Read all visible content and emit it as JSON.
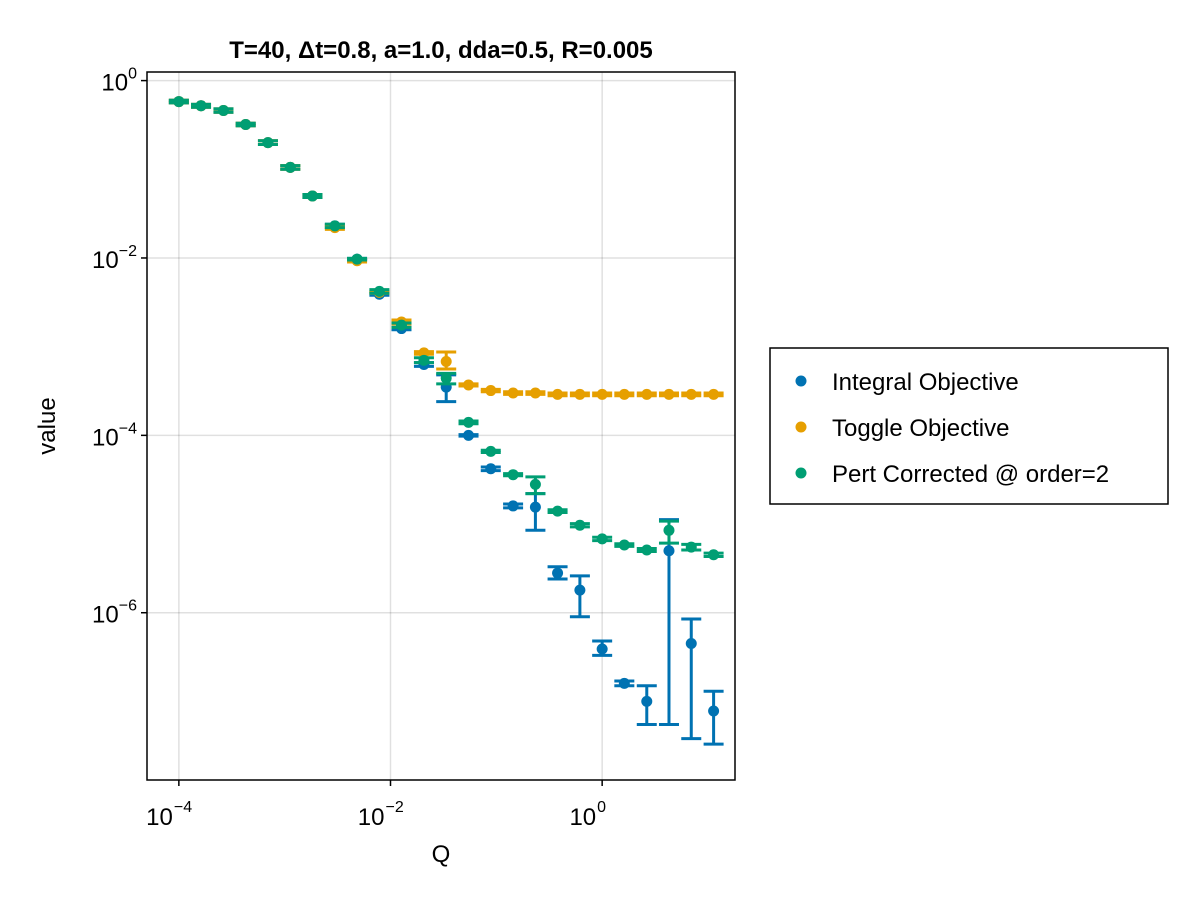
{
  "chart_data": {
    "type": "scatter",
    "title": "T=40, Δt=0.8, a=1.0, dda=0.5, R=0.005",
    "xlabel": "Q",
    "ylabel": "value",
    "xscale": "log10",
    "yscale": "log10",
    "xlim": [
      5e-05,
      18
    ],
    "ylim": [
      1.3e-08,
      1.25
    ],
    "x_ticks": [
      {
        "value": 0.0001,
        "base": "10",
        "exp": "−4"
      },
      {
        "value": 0.01,
        "base": "10",
        "exp": "−2"
      },
      {
        "value": 1,
        "base": "10",
        "exp": "0"
      }
    ],
    "y_ticks": [
      {
        "value": 1,
        "base": "10",
        "exp": "0"
      },
      {
        "value": 0.01,
        "base": "10",
        "exp": "−2"
      },
      {
        "value": 0.0001,
        "base": "10",
        "exp": "−4"
      },
      {
        "value": 1e-06,
        "base": "10",
        "exp": "−6"
      }
    ],
    "grid": true,
    "legend_position": "right",
    "series": [
      {
        "name": "Integral Objective",
        "color": "#0072b2",
        "points": [
          {
            "x": 0.0001,
            "y": 0.58,
            "lo": 0.56,
            "hi": 0.6
          },
          {
            "x": 0.000162,
            "y": 0.52,
            "lo": 0.5,
            "hi": 0.54
          },
          {
            "x": 0.000264,
            "y": 0.46,
            "lo": 0.44,
            "hi": 0.48
          },
          {
            "x": 0.000428,
            "y": 0.32,
            "lo": 0.31,
            "hi": 0.33
          },
          {
            "x": 0.000695,
            "y": 0.2,
            "lo": 0.19,
            "hi": 0.21
          },
          {
            "x": 0.00113,
            "y": 0.105,
            "lo": 0.1,
            "hi": 0.11
          },
          {
            "x": 0.00183,
            "y": 0.05,
            "lo": 0.048,
            "hi": 0.052
          },
          {
            "x": 0.00298,
            "y": 0.023,
            "lo": 0.022,
            "hi": 0.024
          },
          {
            "x": 0.00483,
            "y": 0.0097,
            "lo": 0.0095,
            "hi": 0.0099
          },
          {
            "x": 0.00785,
            "y": 0.0039,
            "lo": 0.0038,
            "hi": 0.0041
          },
          {
            "x": 0.0127,
            "y": 0.0016,
            "lo": 0.00155,
            "hi": 0.00165
          },
          {
            "x": 0.0207,
            "y": 0.00063,
            "lo": 0.0006,
            "hi": 0.00066
          },
          {
            "x": 0.0336,
            "y": 0.00035,
            "lo": 0.00024,
            "hi": 0.00048
          },
          {
            "x": 0.0546,
            "y": 0.0001,
            "lo": 9.8e-05,
            "hi": 0.000102
          },
          {
            "x": 0.0886,
            "y": 4.2e-05,
            "lo": 4e-05,
            "hi": 4.4e-05
          },
          {
            "x": 0.144,
            "y": 1.6e-05,
            "lo": 1.52e-05,
            "hi": 1.68e-05
          },
          {
            "x": 0.234,
            "y": 1.55e-05,
            "lo": 8.5e-06,
            "hi": 2.2e-05
          },
          {
            "x": 0.379,
            "y": 2.8e-06,
            "lo": 2.4e-06,
            "hi": 3.3e-06
          },
          {
            "x": 0.616,
            "y": 1.8e-06,
            "lo": 9e-07,
            "hi": 2.6e-06
          },
          {
            "x": 1.0,
            "y": 3.9e-07,
            "lo": 3.3e-07,
            "hi": 4.8e-07
          },
          {
            "x": 1.62,
            "y": 1.6e-07,
            "lo": 1.5e-07,
            "hi": 1.7e-07
          },
          {
            "x": 2.64,
            "y": 1e-07,
            "lo": 5.5e-08,
            "hi": 1.5e-07
          },
          {
            "x": 4.28,
            "y": 5e-06,
            "lo": 5.5e-08,
            "hi": 1.12e-05
          },
          {
            "x": 6.95,
            "y": 4.5e-07,
            "lo": 3.8e-08,
            "hi": 8.5e-07
          },
          {
            "x": 11.3,
            "y": 7.8e-08,
            "lo": 3.3e-08,
            "hi": 1.3e-07
          }
        ]
      },
      {
        "name": "Toggle Objective",
        "color": "#e69f00",
        "points": [
          {
            "x": 0.0001,
            "y": 0.58,
            "lo": 0.56,
            "hi": 0.6
          },
          {
            "x": 0.000162,
            "y": 0.52,
            "lo": 0.5,
            "hi": 0.54
          },
          {
            "x": 0.000264,
            "y": 0.46,
            "lo": 0.44,
            "hi": 0.48
          },
          {
            "x": 0.000428,
            "y": 0.32,
            "lo": 0.31,
            "hi": 0.33
          },
          {
            "x": 0.000695,
            "y": 0.2,
            "lo": 0.19,
            "hi": 0.21
          },
          {
            "x": 0.00113,
            "y": 0.105,
            "lo": 0.1,
            "hi": 0.11
          },
          {
            "x": 0.00183,
            "y": 0.05,
            "lo": 0.048,
            "hi": 0.052
          },
          {
            "x": 0.00298,
            "y": 0.022,
            "lo": 0.021,
            "hi": 0.023
          },
          {
            "x": 0.00483,
            "y": 0.0093,
            "lo": 0.009,
            "hi": 0.0096
          },
          {
            "x": 0.00785,
            "y": 0.0041,
            "lo": 0.004,
            "hi": 0.0042
          },
          {
            "x": 0.0127,
            "y": 0.0019,
            "lo": 0.0018,
            "hi": 0.002
          },
          {
            "x": 0.0207,
            "y": 0.00085,
            "lo": 0.00082,
            "hi": 0.00088
          },
          {
            "x": 0.0336,
            "y": 0.00068,
            "lo": 0.00056,
            "hi": 0.00087
          },
          {
            "x": 0.0546,
            "y": 0.00037,
            "lo": 0.00036,
            "hi": 0.00038
          },
          {
            "x": 0.0886,
            "y": 0.00032,
            "lo": 0.00031,
            "hi": 0.00033
          },
          {
            "x": 0.144,
            "y": 0.0003,
            "lo": 0.00029,
            "hi": 0.00031
          },
          {
            "x": 0.234,
            "y": 0.0003,
            "lo": 0.00029,
            "hi": 0.00031
          },
          {
            "x": 0.379,
            "y": 0.00029,
            "lo": 0.00028,
            "hi": 0.0003
          },
          {
            "x": 0.616,
            "y": 0.00029,
            "lo": 0.00028,
            "hi": 0.0003
          },
          {
            "x": 1.0,
            "y": 0.00029,
            "lo": 0.00028,
            "hi": 0.0003
          },
          {
            "x": 1.62,
            "y": 0.00029,
            "lo": 0.00028,
            "hi": 0.0003
          },
          {
            "x": 2.64,
            "y": 0.00029,
            "lo": 0.00028,
            "hi": 0.0003
          },
          {
            "x": 4.28,
            "y": 0.00029,
            "lo": 0.00028,
            "hi": 0.0003
          },
          {
            "x": 6.95,
            "y": 0.00029,
            "lo": 0.00028,
            "hi": 0.0003
          },
          {
            "x": 11.3,
            "y": 0.00029,
            "lo": 0.00028,
            "hi": 0.0003
          }
        ]
      },
      {
        "name": "Pert Corrected @ order=2",
        "color": "#009e73",
        "points": [
          {
            "x": 0.0001,
            "y": 0.58,
            "lo": 0.56,
            "hi": 0.6
          },
          {
            "x": 0.000162,
            "y": 0.52,
            "lo": 0.5,
            "hi": 0.54
          },
          {
            "x": 0.000264,
            "y": 0.46,
            "lo": 0.44,
            "hi": 0.48
          },
          {
            "x": 0.000428,
            "y": 0.32,
            "lo": 0.31,
            "hi": 0.33
          },
          {
            "x": 0.000695,
            "y": 0.2,
            "lo": 0.19,
            "hi": 0.21
          },
          {
            "x": 0.00113,
            "y": 0.105,
            "lo": 0.1,
            "hi": 0.11
          },
          {
            "x": 0.00183,
            "y": 0.05,
            "lo": 0.048,
            "hi": 0.052
          },
          {
            "x": 0.00298,
            "y": 0.023,
            "lo": 0.022,
            "hi": 0.024
          },
          {
            "x": 0.00483,
            "y": 0.0097,
            "lo": 0.0095,
            "hi": 0.0099
          },
          {
            "x": 0.00785,
            "y": 0.0042,
            "lo": 0.004,
            "hi": 0.0044
          },
          {
            "x": 0.0127,
            "y": 0.00175,
            "lo": 0.00165,
            "hi": 0.00185
          },
          {
            "x": 0.0207,
            "y": 0.0007,
            "lo": 0.00066,
            "hi": 0.00075
          },
          {
            "x": 0.0336,
            "y": 0.00044,
            "lo": 0.00038,
            "hi": 0.0005
          },
          {
            "x": 0.0546,
            "y": 0.00014,
            "lo": 0.000135,
            "hi": 0.000145
          },
          {
            "x": 0.0886,
            "y": 6.6e-05,
            "lo": 6.4e-05,
            "hi": 6.8e-05
          },
          {
            "x": 0.144,
            "y": 3.6e-05,
            "lo": 3.5e-05,
            "hi": 3.7e-05
          },
          {
            "x": 0.234,
            "y": 2.8e-05,
            "lo": 2.2e-05,
            "hi": 3.4e-05
          },
          {
            "x": 0.379,
            "y": 1.4e-05,
            "lo": 1.35e-05,
            "hi": 1.45e-05
          },
          {
            "x": 0.616,
            "y": 9.7e-06,
            "lo": 9.3e-06,
            "hi": 1.01e-05
          },
          {
            "x": 1.0,
            "y": 6.8e-06,
            "lo": 6.5e-06,
            "hi": 7.1e-06
          },
          {
            "x": 1.62,
            "y": 5.8e-06,
            "lo": 5.6e-06,
            "hi": 6e-06
          },
          {
            "x": 2.64,
            "y": 5.1e-06,
            "lo": 4.9e-06,
            "hi": 5.3e-06
          },
          {
            "x": 4.28,
            "y": 8.5e-06,
            "lo": 6.1e-06,
            "hi": 1.08e-05
          },
          {
            "x": 6.95,
            "y": 5.5e-06,
            "lo": 5.1e-06,
            "hi": 5.9e-06
          },
          {
            "x": 11.3,
            "y": 4.5e-06,
            "lo": 4.3e-06,
            "hi": 4.7e-06
          }
        ]
      }
    ]
  }
}
